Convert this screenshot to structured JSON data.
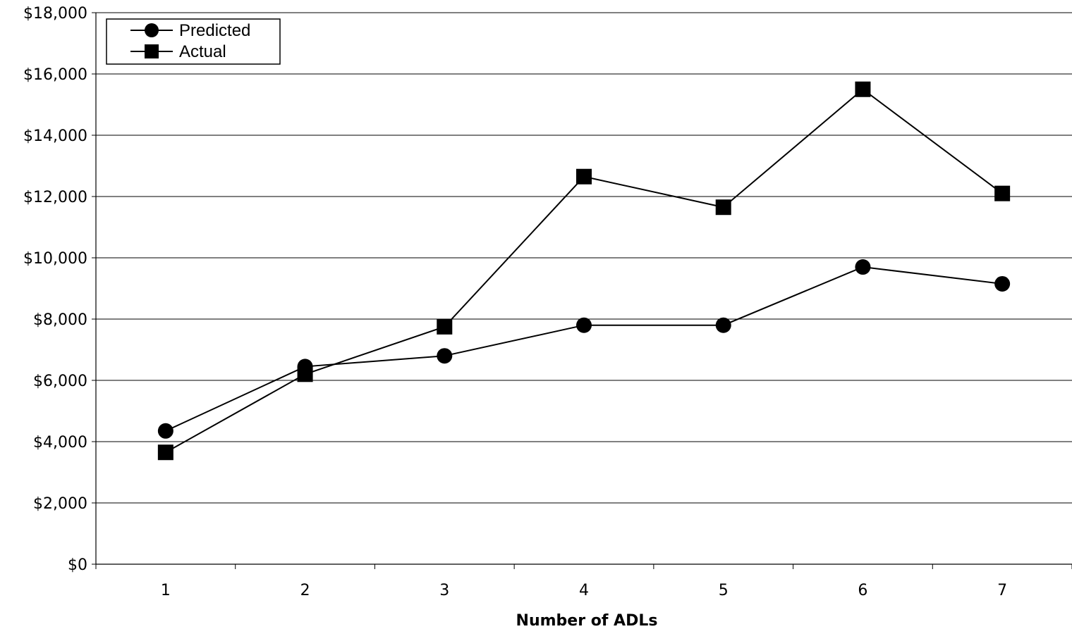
{
  "chart_data": {
    "type": "line",
    "title": "",
    "xlabel": "Number of ADLs",
    "ylabel": "",
    "categories": [
      "1",
      "2",
      "3",
      "4",
      "5",
      "6",
      "7"
    ],
    "ylim": [
      0,
      18000
    ],
    "ytick_values": [
      0,
      2000,
      4000,
      6000,
      8000,
      10000,
      12000,
      14000,
      16000,
      18000
    ],
    "ytick_labels": [
      "$0",
      "$2,000",
      "$4,000",
      "$6,000",
      "$8,000",
      "$10,000",
      "$12,000",
      "$14,000",
      "$16,000",
      "$18,000"
    ],
    "grid": "horizontal",
    "legend_position": "top-left",
    "series": [
      {
        "name": "Predicted",
        "marker": "circle",
        "color": "#000000",
        "values": [
          4350,
          6450,
          6800,
          7800,
          7800,
          9700,
          9150
        ]
      },
      {
        "name": "Actual",
        "marker": "square",
        "color": "#000000",
        "values": [
          3650,
          6200,
          7750,
          12650,
          11650,
          15500,
          12100
        ]
      }
    ]
  }
}
